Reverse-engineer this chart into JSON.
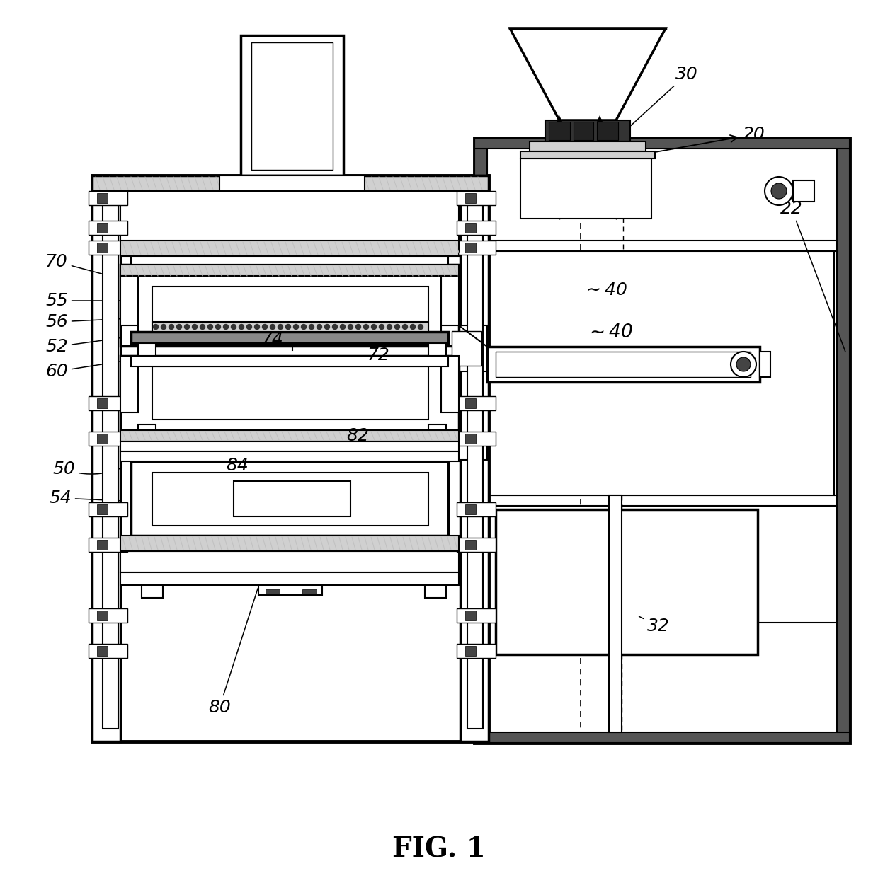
{
  "bg_color": "#ffffff",
  "lc": "#000000",
  "title": "FIG. 1",
  "title_fontsize": 28,
  "hatch_gray": "#c0c0c0",
  "sand_gray": "#d0d0d0"
}
